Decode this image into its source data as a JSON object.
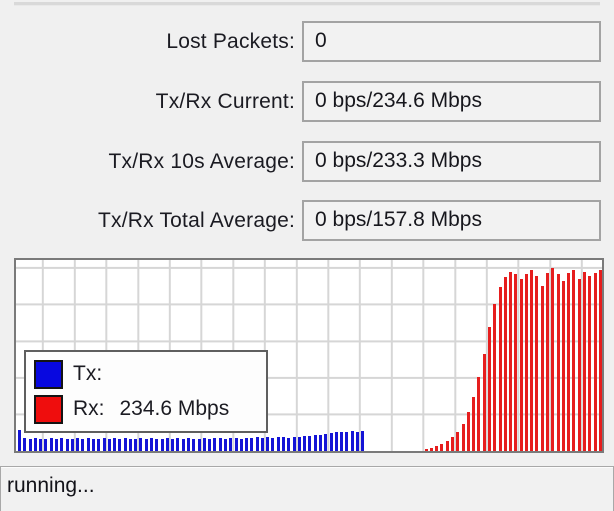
{
  "fields": [
    {
      "label": "Lost Packets:",
      "value": "0"
    },
    {
      "label": "Tx/Rx Current:",
      "value": "0 bps/234.6 Mbps"
    },
    {
      "label": "Tx/Rx 10s Average:",
      "value": "0 bps/233.3 Mbps"
    },
    {
      "label": "Tx/Rx Total Average:",
      "value": "0 bps/157.8 Mbps"
    }
  ],
  "legend": {
    "tx_label": "Tx:",
    "tx_value": "",
    "rx_label": "Rx:",
    "rx_value": "234.6 Mbps",
    "tx_color": "#0808e0",
    "rx_color": "#ef0d0d"
  },
  "status": {
    "text": "running..."
  },
  "chart_data": {
    "type": "bar",
    "title": "",
    "xlabel": "",
    "ylabel": "",
    "unit": "Mbps",
    "ylim": [
      0,
      240
    ],
    "grid": true,
    "legend_position": "overlay bottom-left",
    "total_slots": 111,
    "series": [
      {
        "name": "Tx",
        "color": "#1414d6",
        "start_slot": 0,
        "values": [
          27,
          17,
          16,
          17,
          16,
          16,
          17,
          16,
          17,
          16,
          16,
          17,
          16,
          17,
          16,
          16,
          17,
          16,
          17,
          16,
          17,
          16,
          16,
          17,
          16,
          17,
          16,
          16,
          17,
          16,
          17,
          16,
          17,
          16,
          16,
          17,
          16,
          17,
          17,
          16,
          17,
          17,
          16,
          17,
          17,
          18,
          17,
          18,
          17,
          18,
          18,
          17,
          18,
          18,
          19,
          19,
          20,
          21,
          22,
          23,
          24,
          25,
          25,
          26,
          25,
          26
        ]
      },
      {
        "name": "Rx",
        "color": "#e61e1e",
        "start_slot": 77,
        "values": [
          3,
          4,
          6,
          9,
          13,
          18,
          25,
          35,
          50,
          70,
          95,
          125,
          160,
          190,
          212,
          225,
          231,
          228,
          222,
          229,
          233,
          226,
          213,
          230,
          236,
          228,
          219,
          230,
          233,
          222,
          231,
          226,
          230,
          233
        ]
      }
    ]
  }
}
